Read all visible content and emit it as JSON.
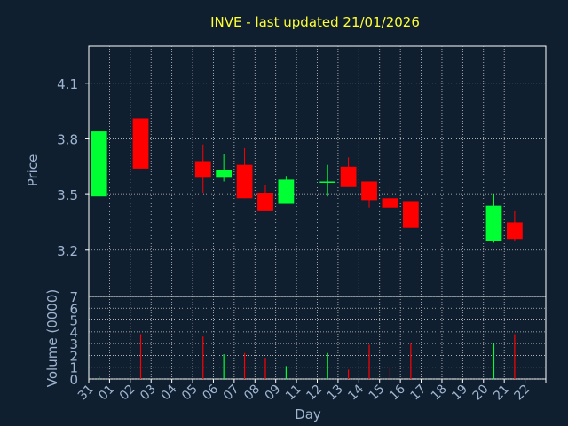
{
  "colors": {
    "background": "#0f1f2f",
    "panel_border": "#ffffff",
    "grid": "#c8c8c8",
    "title": "#ffff33",
    "axis_text": "#9fb5d1",
    "up": "#00ff33",
    "down": "#ff0000"
  },
  "chart_data": [
    {
      "type": "candlestick",
      "title": "INVE - last updated 21/01/2026",
      "xlabel": "",
      "ylabel": "Price",
      "ylim": [
        2.95,
        4.3
      ],
      "yticks": [
        "3.2",
        "3.5",
        "3.8",
        "4.1"
      ],
      "grid": true,
      "x": [
        "31",
        "01",
        "02",
        "03",
        "04",
        "05",
        "06",
        "07",
        "08",
        "09",
        "11",
        "12",
        "13",
        "14",
        "15",
        "16",
        "17",
        "18",
        "19",
        "20",
        "21",
        "22"
      ],
      "candles": [
        {
          "x": "31",
          "open": 3.49,
          "high": 3.84,
          "low": 3.49,
          "close": 3.84
        },
        {
          "x": "02",
          "open": 3.91,
          "high": 3.91,
          "low": 3.64,
          "close": 3.64
        },
        {
          "x": "05",
          "open": 3.68,
          "high": 3.77,
          "low": 3.51,
          "close": 3.59
        },
        {
          "x": "06",
          "open": 3.59,
          "high": 3.72,
          "low": 3.57,
          "close": 3.63
        },
        {
          "x": "07",
          "open": 3.66,
          "high": 3.75,
          "low": 3.48,
          "close": 3.48
        },
        {
          "x": "08",
          "open": 3.51,
          "high": 3.55,
          "low": 3.41,
          "close": 3.41
        },
        {
          "x": "09",
          "open": 3.45,
          "high": 3.6,
          "low": 3.45,
          "close": 3.58
        },
        {
          "x": "12",
          "open": 3.57,
          "high": 3.66,
          "low": 3.49,
          "close": 3.57
        },
        {
          "x": "13",
          "open": 3.65,
          "high": 3.7,
          "low": 3.54,
          "close": 3.54
        },
        {
          "x": "14",
          "open": 3.57,
          "high": 3.57,
          "low": 3.43,
          "close": 3.47
        },
        {
          "x": "15",
          "open": 3.48,
          "high": 3.54,
          "low": 3.43,
          "close": 3.43
        },
        {
          "x": "16",
          "open": 3.46,
          "high": 3.46,
          "low": 3.32,
          "close": 3.32
        },
        {
          "x": "20",
          "open": 3.25,
          "high": 3.5,
          "low": 3.24,
          "close": 3.44
        },
        {
          "x": "21",
          "open": 3.35,
          "high": 3.41,
          "low": 3.25,
          "close": 3.26
        }
      ]
    },
    {
      "type": "bar",
      "title": "",
      "xlabel": "Day",
      "ylabel": "Volume (0000)",
      "ylim": [
        0,
        7
      ],
      "yticks": [
        "0",
        "1",
        "2",
        "3",
        "4",
        "5",
        "6",
        "7"
      ],
      "grid": true,
      "x": [
        "31",
        "01",
        "02",
        "03",
        "04",
        "05",
        "06",
        "07",
        "08",
        "09",
        "11",
        "12",
        "13",
        "14",
        "15",
        "16",
        "17",
        "18",
        "19",
        "20",
        "21",
        "22"
      ],
      "bars": [
        {
          "x": "31",
          "value": 0.2,
          "direction": "up"
        },
        {
          "x": "02",
          "value": 3.8,
          "direction": "down"
        },
        {
          "x": "05",
          "value": 3.6,
          "direction": "down"
        },
        {
          "x": "06",
          "value": 2.1,
          "direction": "up"
        },
        {
          "x": "07",
          "value": 2.2,
          "direction": "down"
        },
        {
          "x": "08",
          "value": 1.8,
          "direction": "down"
        },
        {
          "x": "09",
          "value": 1.1,
          "direction": "up"
        },
        {
          "x": "12",
          "value": 2.2,
          "direction": "up"
        },
        {
          "x": "13",
          "value": 0.8,
          "direction": "down"
        },
        {
          "x": "14",
          "value": 2.9,
          "direction": "down"
        },
        {
          "x": "15",
          "value": 1.0,
          "direction": "down"
        },
        {
          "x": "16",
          "value": 3.0,
          "direction": "down"
        },
        {
          "x": "20",
          "value": 3.0,
          "direction": "up"
        },
        {
          "x": "21",
          "value": 3.8,
          "direction": "down"
        }
      ]
    }
  ]
}
